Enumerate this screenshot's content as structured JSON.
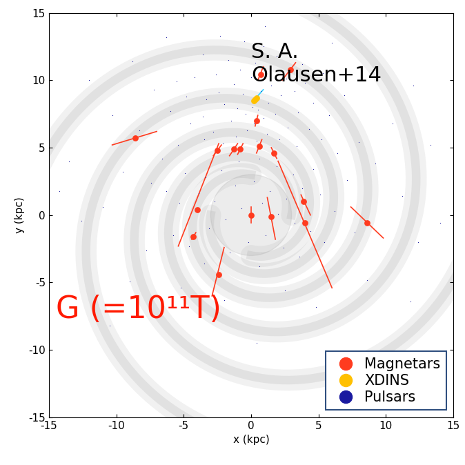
{
  "chart_data": {
    "type": "scatter",
    "xlabel": "x (kpc)",
    "ylabel": "y (kpc)",
    "xlim": [
      -15,
      15
    ],
    "ylim": [
      -15,
      15
    ],
    "xticks": [
      -15,
      -10,
      -5,
      0,
      5,
      10,
      15
    ],
    "yticks": [
      -15,
      -10,
      -5,
      0,
      5,
      10,
      15
    ],
    "grid": false,
    "legend": "lower right",
    "annotations": [
      "S. A.\nOlausen+14",
      "G (=10¹¹T)"
    ],
    "series": [
      {
        "name": "Pulsars",
        "color": "#1a1aa0",
        "marker": "point",
        "x": [
          0.1,
          0.5,
          -0.4,
          0.9,
          -1.0,
          1.3,
          -1.5,
          0.2,
          1.8,
          -2.0,
          0.7,
          -0.6,
          1.5,
          -1.3,
          2.2,
          -2.4,
          0.0,
          1.0,
          -0.8,
          2.6,
          -2.6,
          0.3,
          -1.7,
          1.9,
          3.2,
          -3.3,
          3.5,
          -3.6,
          2.7,
          -2.8,
          1.2,
          -1.1,
          0.4,
          -0.3,
          2.1,
          -2.1,
          3.4,
          -3.5,
          4.3,
          -4.5,
          4.6,
          -4.8,
          4.0,
          -4.2,
          3.8,
          -3.6,
          0.9,
          -0.5,
          2.4,
          -2.3,
          5.3,
          -5.5,
          5.8,
          -6.0,
          5.2,
          -5.4,
          6.4,
          -6.6,
          6.9,
          -7.2,
          0.6,
          -0.9,
          1.9,
          -2.2,
          3.1,
          -3.4,
          4.6,
          -4.9,
          0.2,
          -1.2,
          1.4,
          2.6,
          -2.7,
          3.8,
          -3.9,
          5.1,
          -5.3,
          0.8,
          -0.7,
          2.0,
          -1.9,
          3.2,
          -3.1,
          4.4,
          -4.6,
          1.1,
          -0.2,
          2.4,
          -1.6,
          3.6,
          -3.5,
          0.6,
          5.4,
          -5.8,
          6.2,
          -6.3,
          7.1,
          -7.4,
          8.0,
          -8.3,
          9.2,
          -9.5,
          7.7,
          -7.8,
          10.5,
          -10.3,
          11.2,
          -11.0,
          9.0,
          -8.8,
          12.4,
          -12.6,
          13.3,
          -13.5,
          6.0,
          -6.3,
          2.5,
          -2.0,
          4.8,
          -5.2,
          8.6,
          -9.0,
          11.8,
          -10.5,
          0.4,
          14.0,
          -14.2,
          1.0,
          -12.0,
          12.0
        ],
        "values": [
          8.0,
          7.8,
          7.5,
          7.2,
          7.9,
          8.3,
          7.0,
          6.8,
          7.5,
          8.2,
          9.2,
          9.0,
          9.6,
          9.7,
          8.9,
          9.1,
          10.2,
          10.6,
          10.8,
          10.1,
          10.4,
          11.3,
          11.5,
          11.8,
          9.2,
          8.6,
          7.6,
          7.3,
          6.5,
          6.2,
          6.0,
          5.8,
          5.5,
          6.3,
          5.6,
          5.3,
          5.1,
          5.6,
          6.4,
          6.8,
          8.3,
          8.8,
          9.8,
          10.2,
          11.2,
          11.9,
          12.5,
          12.9,
          12.7,
          13.3,
          10.5,
          9.9,
          7.4,
          7.7,
          5.6,
          5.2,
          4.6,
          4.2,
          8.9,
          9.3,
          4.2,
          4.0,
          3.6,
          3.3,
          3.0,
          2.8,
          3.4,
          3.1,
          2.5,
          2.2,
          1.8,
          1.2,
          1.0,
          2.0,
          1.6,
          1.5,
          0.9,
          0.9,
          0.5,
          0.1,
          -0.3,
          -0.6,
          -1.0,
          -1.2,
          -2.3,
          -1.5,
          -2.0,
          -2.4,
          -2.8,
          -3.1,
          -3.6,
          -3.8,
          -2.0,
          -1.5,
          0.3,
          1.8,
          2.6,
          2.4,
          5.4,
          6.3,
          3.8,
          3.2,
          -1.3,
          -2.6,
          6.8,
          7.4,
          1.4,
          0.6,
          10.6,
          11.4,
          -2.0,
          -0.4,
          5.2,
          4.0,
          12.8,
          13.2,
          -5.6,
          -6.3,
          -6.8,
          -5.4,
          -4.8,
          -4.9,
          -6.4,
          -8.2,
          -9.5,
          -0.6,
          1.8,
          14.0,
          10.0,
          9.6
        ]
      },
      {
        "name": "Magnetars",
        "color": "#ff3b1f",
        "marker": "circle",
        "x": [
          -8.6,
          -2.5,
          -1.3,
          -0.8,
          0.6,
          1.7,
          0.4,
          0.7,
          2.9,
          -4.0,
          -4.3,
          -2.4,
          0.0,
          1.5,
          3.9,
          4.0,
          8.6
        ],
        "values": [
          5.7,
          4.8,
          4.9,
          4.9,
          5.1,
          4.6,
          7.0,
          10.4,
          10.8,
          0.4,
          -1.6,
          -4.4,
          0.0,
          -0.1,
          1.0,
          -0.6,
          -0.6
        ],
        "segments": [
          [
            [
              -10.3,
              5.2
            ],
            [
              -7.0,
              6.2
            ]
          ],
          [
            [
              -2.8,
              4.4
            ],
            [
              -2.2,
              5.2
            ]
          ],
          [
            [
              -1.6,
              4.4
            ],
            [
              -1.0,
              5.3
            ]
          ],
          [
            [
              -1.0,
              4.5
            ],
            [
              -0.6,
              5.3
            ]
          ],
          [
            [
              0.4,
              4.6
            ],
            [
              0.8,
              5.6
            ]
          ],
          [
            [
              1.5,
              5.0
            ],
            [
              1.9,
              4.2
            ]
          ],
          [
            [
              0.3,
              6.6
            ],
            [
              0.5,
              7.4
            ]
          ],
          [
            [
              0.5,
              10.0
            ],
            [
              0.9,
              11.0
            ]
          ],
          [
            [
              2.3,
              10.0
            ],
            [
              3.3,
              11.3
            ]
          ],
          [
            [
              -5.4,
              -2.3
            ],
            [
              -2.4,
              5.3
            ]
          ],
          [
            [
              -4.4,
              -1.8
            ],
            [
              -4.1,
              -1.3
            ]
          ],
          [
            [
              -2.9,
              -6.0
            ],
            [
              -2.0,
              -2.4
            ]
          ],
          [
            [
              0.0,
              -0.6
            ],
            [
              0.0,
              0.6
            ]
          ],
          [
            [
              1.2,
              1.3
            ],
            [
              1.8,
              -1.8
            ]
          ],
          [
            [
              3.7,
              1.5
            ],
            [
              4.4,
              0.0
            ]
          ],
          [
            [
              2.0,
              4.0
            ],
            [
              6.0,
              -5.4
            ]
          ],
          [
            [
              7.4,
              0.6
            ],
            [
              9.8,
              -1.7
            ]
          ]
        ]
      },
      {
        "name": "XDINS",
        "color": "#ffc000",
        "marker": "circle",
        "x": [
          0.2,
          0.3,
          0.4
        ],
        "values": [
          8.5,
          8.6,
          8.7
        ],
        "segments": [
          [
            [
              0.2,
              8.5
            ],
            [
              0.9,
              9.3
            ]
          ]
        ]
      }
    ]
  }
}
